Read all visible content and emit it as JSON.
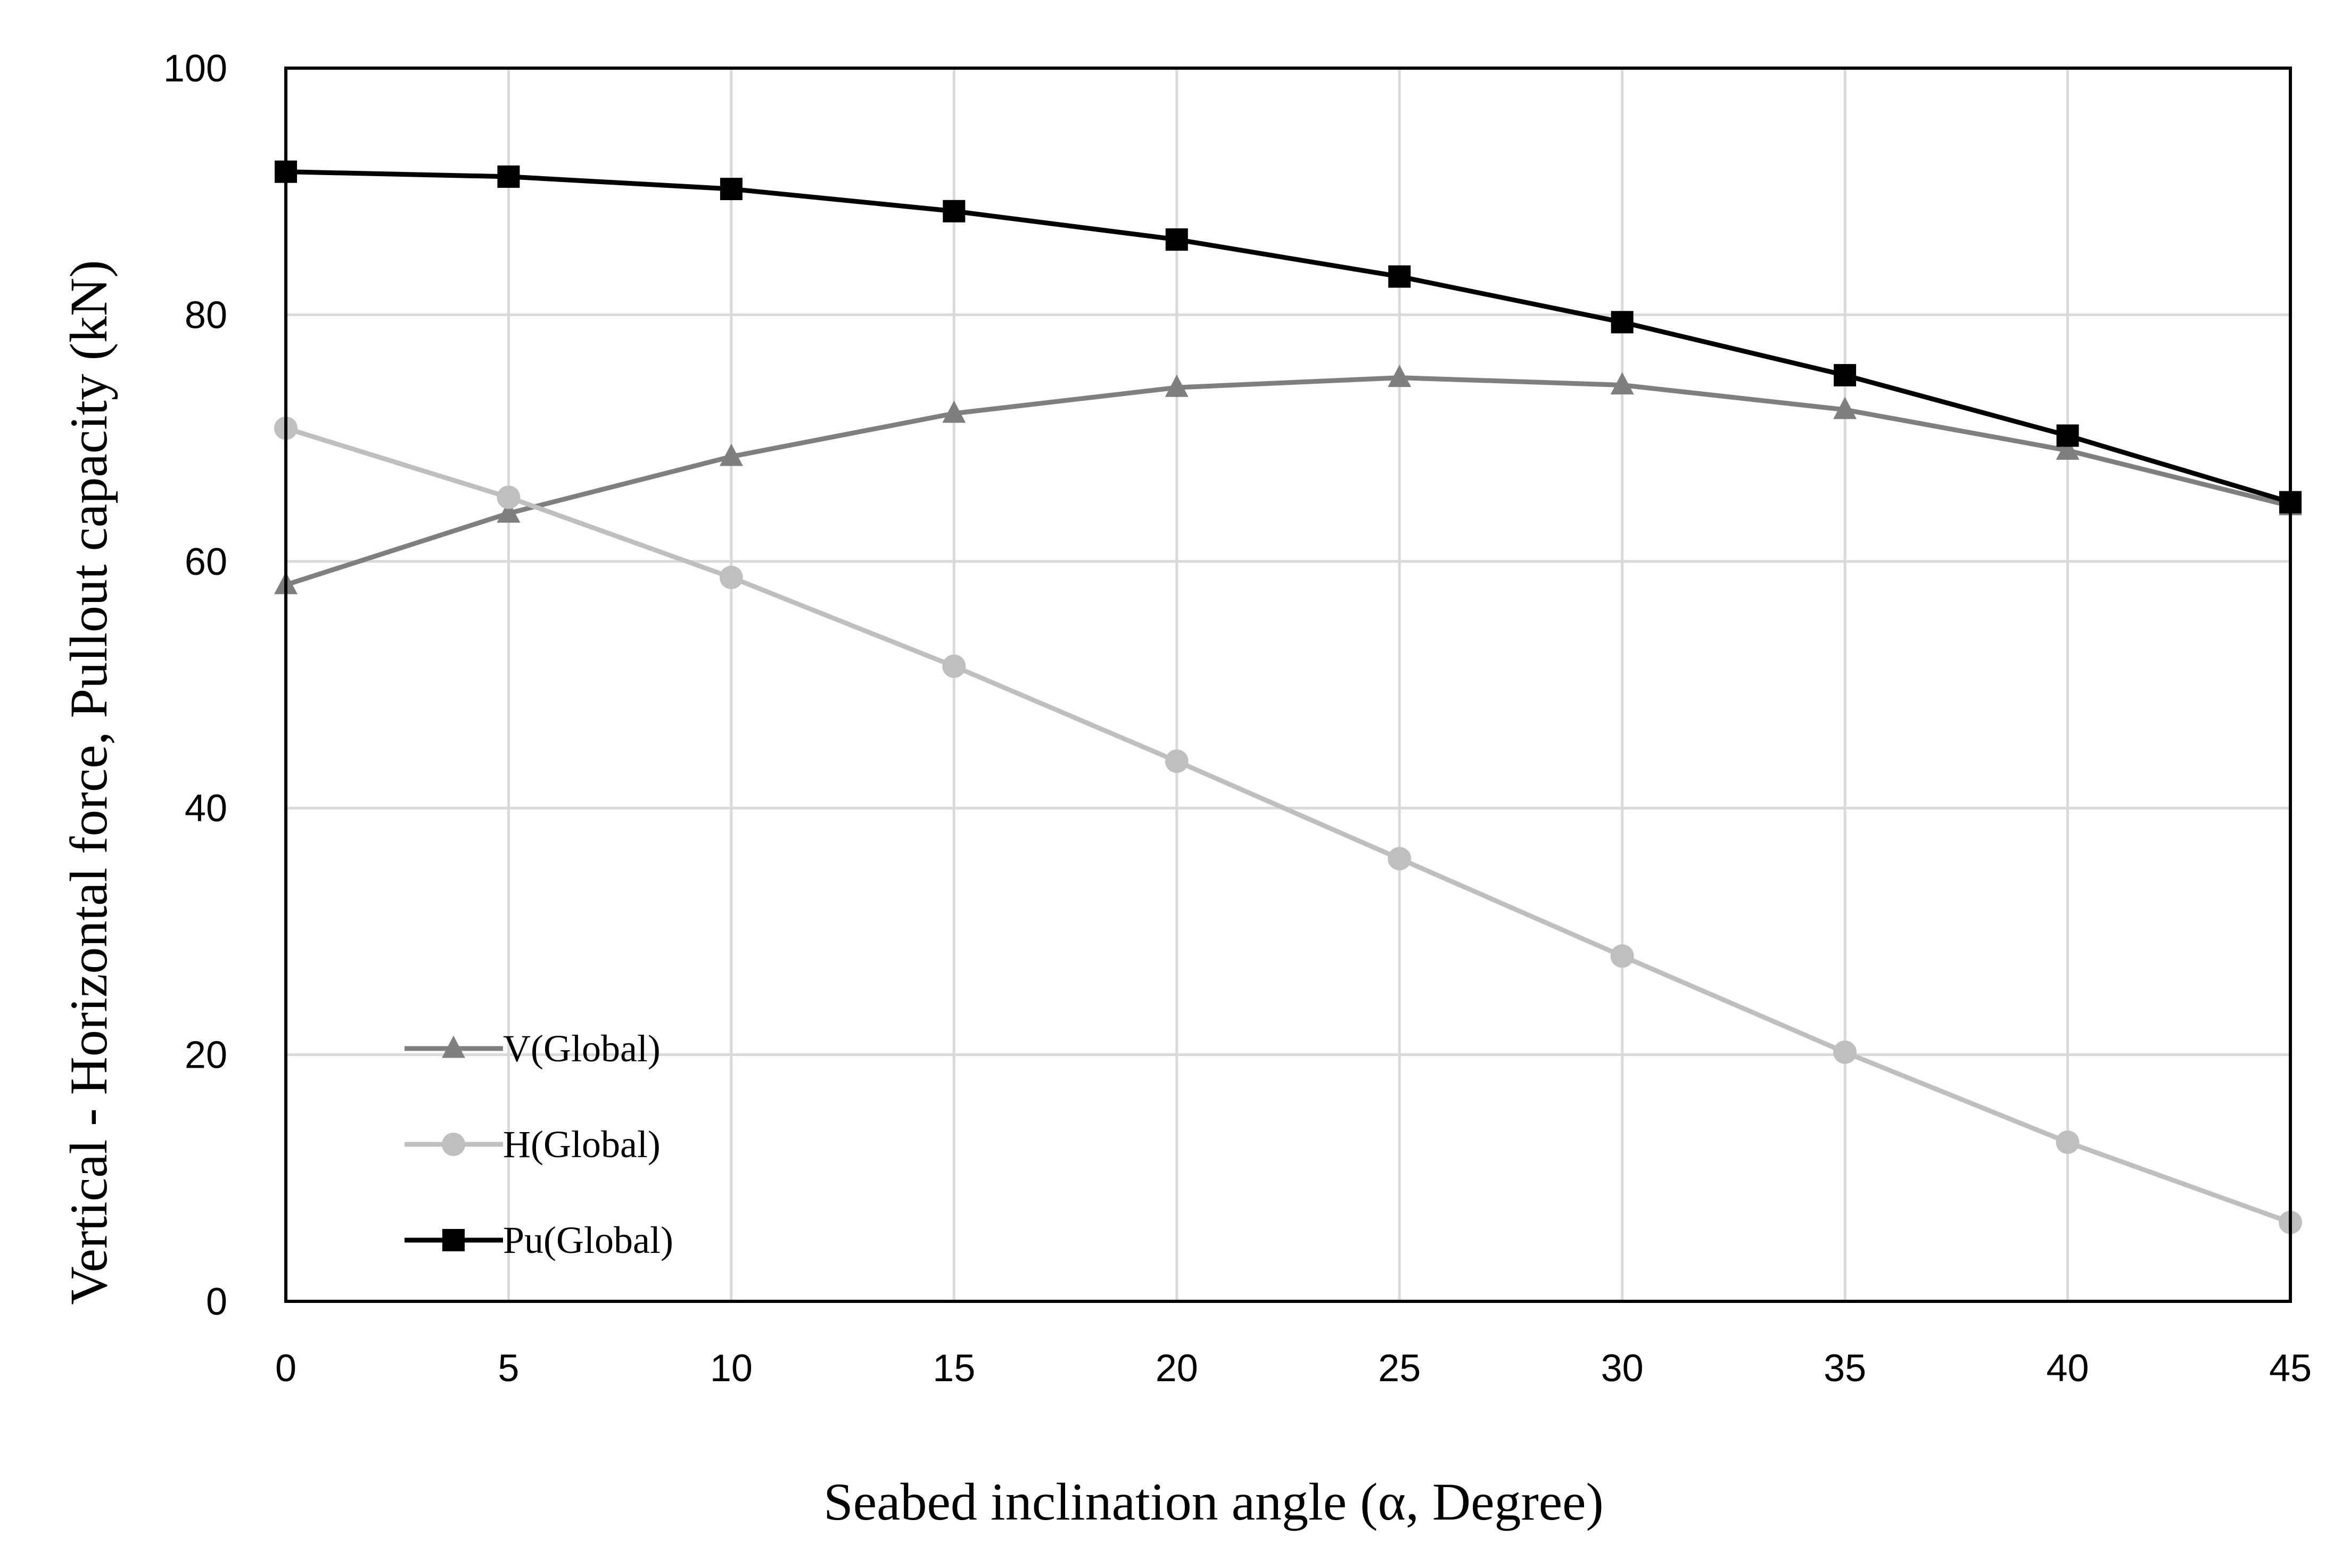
{
  "chart_data": {
    "type": "line",
    "title": "",
    "xlabel": "Seabed inclination angle (α, Degree)",
    "ylabel": "Vertical - Horizontal force, Pullout capacity (kN)",
    "x": [
      0,
      5,
      10,
      15,
      20,
      25,
      30,
      35,
      40,
      45
    ],
    "xlim": [
      0,
      45
    ],
    "ylim": [
      0,
      100
    ],
    "x_ticks": [
      0,
      5,
      10,
      15,
      20,
      25,
      30,
      35,
      40,
      45
    ],
    "y_ticks": [
      0,
      20,
      40,
      60,
      80,
      100
    ],
    "grid": true,
    "legend_position": "bottom-left",
    "series": [
      {
        "name": "V(Global)",
        "marker": "triangle",
        "color": "#7f7f7f",
        "values": [
          58.1,
          63.9,
          68.5,
          72.0,
          74.1,
          74.9,
          74.3,
          72.3,
          69.0,
          64.5
        ]
      },
      {
        "name": "H(Global)",
        "marker": "circle",
        "color": "#bfbfbf",
        "values": [
          70.8,
          65.2,
          58.7,
          51.5,
          43.8,
          35.9,
          28.0,
          20.2,
          12.9,
          6.4
        ]
      },
      {
        "name": "Pu(Global)",
        "marker": "square",
        "color": "#000000",
        "values": [
          91.6,
          91.2,
          90.2,
          88.4,
          86.1,
          83.1,
          79.4,
          75.1,
          70.2,
          64.8
        ]
      }
    ]
  }
}
